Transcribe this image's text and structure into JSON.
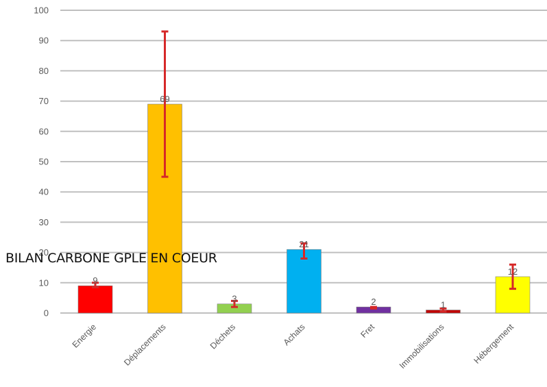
{
  "chart_data": {
    "type": "bar",
    "title": "BILAN CARBONE GPLE EN COEUR",
    "xlabel": "",
    "ylabel": "",
    "ylim": [
      0,
      100
    ],
    "yticks": [
      0,
      10,
      20,
      30,
      40,
      50,
      60,
      70,
      80,
      90,
      100
    ],
    "grid": true,
    "legend": "none",
    "categories": [
      "Energie",
      "Déplacements",
      "Déchets",
      "Achats",
      "Fret",
      "Immobilisations",
      "Hébergement"
    ],
    "values": [
      9,
      69,
      3,
      21,
      2,
      1,
      12
    ],
    "data_labels": [
      "9",
      "69",
      "3",
      "21",
      "2",
      "1",
      "12"
    ],
    "error_bars": {
      "low": [
        8.5,
        45,
        2,
        18,
        1.5,
        0.5,
        8
      ],
      "high": [
        10,
        93,
        4,
        23,
        2,
        1.5,
        16
      ],
      "color": "#d62828"
    },
    "colors": [
      "#ff0000",
      "#ffc000",
      "#92d050",
      "#00b0f0",
      "#7030a0",
      "#c00000",
      "#ffff00"
    ]
  }
}
